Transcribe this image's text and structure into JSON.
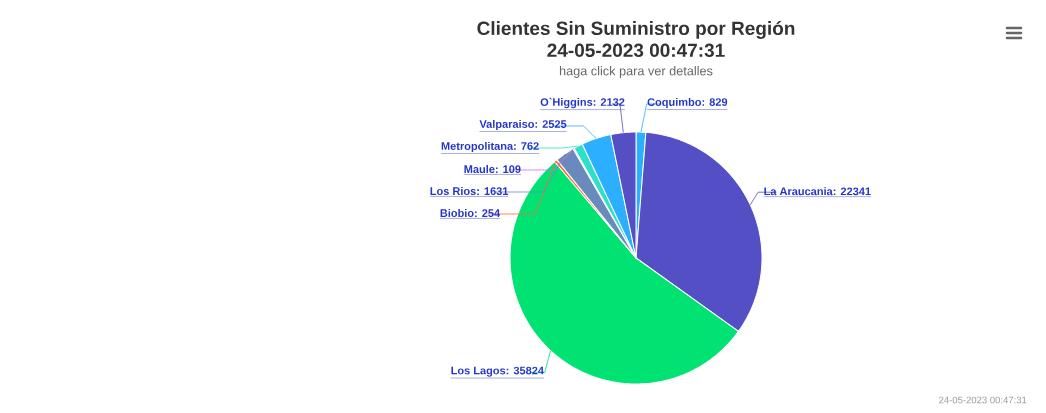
{
  "chart_data": {
    "type": "pie",
    "title": "Clientes Sin Suministro por Región 24-05-2023 00:47:31",
    "subtitle": "haga click para ver detalles",
    "categories": [
      "Coquimbo",
      "La Araucania",
      "Los Lagos",
      "Biobio",
      "Los Rios",
      "Maule",
      "Metropolitana",
      "Valparaiso",
      "O`Higgins"
    ],
    "values": [
      829,
      22341,
      35824,
      254,
      1631,
      109,
      762,
      2525,
      2132
    ],
    "value_labels": [
      ": 829",
      ": 22341",
      ": 35824",
      ": 254",
      ": 1631",
      ": 109",
      ": 762",
      ": 2525",
      ": 2132"
    ],
    "colors": [
      "#2caffe",
      "#544fc5",
      "#00e272",
      "#fe6a35",
      "#6b8abc",
      "#d568fb",
      "#2ee0ca",
      "#2caffe",
      "#544fc5"
    ],
    "annotations": [
      "24-05-2023 00:47:31"
    ]
  }
}
